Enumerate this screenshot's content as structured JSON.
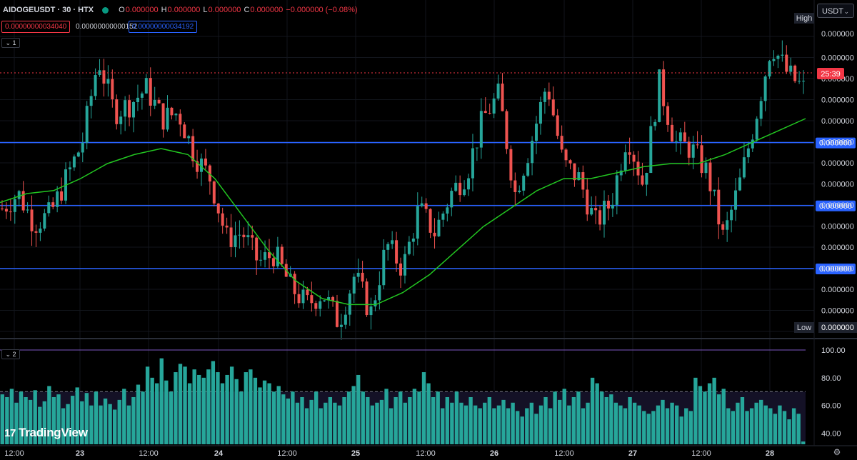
{
  "header": {
    "symbol": "AIDOGEUSDT · 30 · HTX",
    "o_label": "O",
    "o_value": "0.000000",
    "h_label": "H",
    "h_value": "0.000000",
    "l_label": "L",
    "l_value": "0.000000",
    "c_label": "C",
    "c_value": "0.000000",
    "change": "−0.000000 (−0.08%)"
  },
  "indicator_values": {
    "sell_price": "0.00000000034040",
    "spread": "0.00000000000152",
    "buy_price": "0.00000000034192"
  },
  "pane_labels": {
    "main": "1",
    "volume": "2"
  },
  "currency_selector": {
    "label": "USDT",
    "chevron": "⌄"
  },
  "price_axis": {
    "labels": [
      "0.000000",
      "0.000000",
      "0.000000",
      "0.000000",
      "0.000000",
      "0.000000",
      "0.000000",
      "0.000000",
      "0.000000",
      "0.000000",
      "0.000000",
      "0.000000",
      "0.000000",
      "0.000000",
      "0.000000"
    ],
    "high_tag": "High",
    "high_value": "0.000000",
    "low_tag": "Low",
    "low_value": "0.000000",
    "countdown": "25:39",
    "line_labels": [
      "0.000000",
      "0.000000",
      "0.000000"
    ]
  },
  "oscillator_axis": {
    "labels": [
      "100.00",
      "80.00",
      "60.00",
      "40.00"
    ]
  },
  "time_axis": {
    "labels": [
      "12:00",
      "23",
      "12:00",
      "24",
      "12:00",
      "25",
      "12:00",
      "26",
      "12:00",
      "27",
      "12:00",
      "28"
    ]
  },
  "branding": {
    "logo_text": "TradingView",
    "logo_mark": "17"
  },
  "icons": {
    "settings": "gear-icon",
    "chevron": "chevron-down-icon",
    "live_dot": "status-dot-icon"
  },
  "colors": {
    "up": "#26a69a",
    "down": "#ef5350",
    "ma": "#22c521",
    "hline": "#2962ff",
    "current_price": "#f23645",
    "volume": "#26a69a"
  },
  "chart_data": {
    "type": "candlestick",
    "symbol": "AIDOGEUSDT",
    "interval": "30",
    "exchange": "HTX",
    "x": [
      "12:00",
      "23",
      "12:00",
      "24",
      "12:00",
      "25",
      "12:00",
      "26",
      "12:00",
      "27",
      "12:00",
      "28"
    ],
    "price_path_relative": [
      0.4,
      0.45,
      0.35,
      0.38,
      0.5,
      0.62,
      0.9,
      0.72,
      0.75,
      0.8,
      0.7,
      0.72,
      0.58,
      0.5,
      0.3,
      0.32,
      0.22,
      0.25,
      0.14,
      0.08,
      0.12,
      0.02,
      0.18,
      0.05,
      0.28,
      0.2,
      0.4,
      0.32,
      0.45,
      0.52,
      0.7,
      0.78,
      0.45,
      0.62,
      0.82,
      0.55,
      0.5,
      0.35,
      0.42,
      0.65,
      0.48,
      0.82,
      0.62,
      0.6,
      0.52,
      0.3,
      0.48,
      0.7,
      0.95,
      0.85,
      0.8
    ],
    "moving_average_relative": [
      0.42,
      0.45,
      0.46,
      0.5,
      0.55,
      0.58,
      0.6,
      0.58,
      0.5,
      0.38,
      0.26,
      0.16,
      0.1,
      0.08,
      0.08,
      0.12,
      0.18,
      0.26,
      0.34,
      0.4,
      0.46,
      0.5,
      0.5,
      0.52,
      0.54,
      0.55,
      0.55,
      0.58,
      0.62,
      0.66,
      0.7
    ],
    "horizontal_lines_relative": [
      0.62,
      0.41,
      0.2
    ],
    "oscillator": {
      "range": [
        40,
        100
      ],
      "upper_line": 100,
      "level_line": 70,
      "values": [
        68,
        66,
        72,
        62,
        70,
        66,
        64,
        71,
        59,
        63,
        74,
        66,
        68,
        58,
        61,
        67,
        73,
        63,
        69,
        60,
        70,
        60,
        65,
        61,
        57,
        64,
        72,
        60,
        66,
        75,
        70,
        88,
        80,
        76,
        94,
        78,
        70,
        84,
        90,
        88,
        76,
        86,
        82,
        80,
        86,
        92,
        84,
        76,
        82,
        88,
        79,
        70,
        84,
        86,
        80,
        73,
        78,
        76,
        70,
        74,
        68,
        65,
        70,
        62,
        66,
        58,
        64,
        70,
        58,
        62,
        66,
        62,
        60,
        66,
        70,
        74,
        82,
        70,
        66,
        60,
        62,
        64,
        72,
        58,
        66,
        70,
        62,
        66,
        72,
        70,
        84,
        76,
        66,
        70,
        58,
        66,
        62,
        70,
        62,
        60,
        66,
        60,
        58,
        62,
        66,
        58,
        60,
        64,
        58,
        62,
        56,
        52,
        58,
        62,
        54,
        60,
        66,
        58,
        70,
        64,
        72,
        60,
        66,
        70,
        58,
        62,
        80,
        76,
        70,
        66,
        68,
        62,
        60,
        58,
        66,
        62,
        60,
        56,
        54,
        56,
        60,
        64,
        58,
        62,
        60,
        52,
        58,
        56,
        80,
        74,
        70,
        76,
        80,
        68,
        72,
        58,
        56,
        62,
        66,
        56,
        58,
        62,
        64,
        60,
        58,
        54,
        60,
        56,
        50,
        58,
        54,
        34
      ]
    },
    "price_scale": "all labels displayed as 0.000000",
    "grid": true,
    "legend": "top-left"
  }
}
